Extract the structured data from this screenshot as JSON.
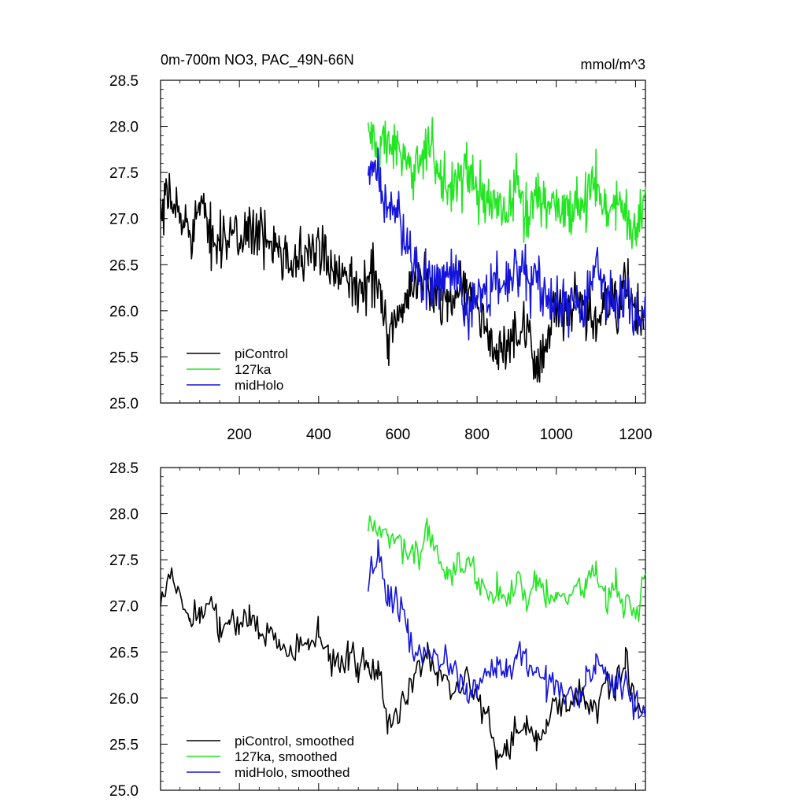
{
  "figure": {
    "title_left": "0m-700m NO3, PAC_49N-66N",
    "title_right": "mmol/m^3"
  },
  "colors": {
    "piControl": "#000000",
    "127ka": "#22e622",
    "midHolo": "#1414dc"
  },
  "chart_data": [
    {
      "type": "line",
      "title": "0m-700m NO3, PAC_49N-66N",
      "units": "mmol/m^3",
      "xlabel": "",
      "ylabel": "",
      "xlim": [
        1,
        1225
      ],
      "ylim": [
        25.0,
        28.5
      ],
      "xticks": [
        200,
        400,
        600,
        800,
        1000,
        1200
      ],
      "yticks": [
        25.0,
        25.5,
        26.0,
        26.5,
        27.0,
        27.5,
        28.0,
        28.5
      ],
      "ytick_labels": [
        "25.0",
        "25.5",
        "26.0",
        "26.5",
        "27.0",
        "27.5",
        "28.0",
        "28.5"
      ],
      "grid": false,
      "legend_position": "bottom-left",
      "series": [
        {
          "name": "piControl",
          "color_key": "piControl",
          "x": [
            1,
            25,
            50,
            75,
            100,
            125,
            150,
            175,
            200,
            225,
            250,
            275,
            300,
            325,
            350,
            375,
            400,
            425,
            450,
            475,
            500,
            525,
            550,
            575,
            600,
            625,
            650,
            675,
            700,
            725,
            750,
            775,
            800,
            825,
            850,
            875,
            900,
            925,
            950,
            975,
            1000,
            1025,
            1050,
            1075,
            1100,
            1125,
            1150,
            1175,
            1200,
            1220
          ],
          "y": [
            26.95,
            27.25,
            27.0,
            26.9,
            27.1,
            26.85,
            26.8,
            26.8,
            26.75,
            26.95,
            26.8,
            26.7,
            26.8,
            26.55,
            26.55,
            26.6,
            26.7,
            26.45,
            26.45,
            26.5,
            26.1,
            26.4,
            26.35,
            25.7,
            25.95,
            26.05,
            26.4,
            26.3,
            26.2,
            26.1,
            26.2,
            26.3,
            26.0,
            25.8,
            25.5,
            25.6,
            25.75,
            25.7,
            25.4,
            25.7,
            26.0,
            25.95,
            26.05,
            25.95,
            25.85,
            26.1,
            26.0,
            26.3,
            26.0,
            25.8
          ]
        },
        {
          "name": "127ka",
          "color_key": "127ka",
          "x": [
            525,
            550,
            575,
            600,
            625,
            650,
            675,
            700,
            725,
            750,
            775,
            800,
            825,
            850,
            875,
            900,
            925,
            950,
            975,
            1000,
            1025,
            1050,
            1075,
            1100,
            1125,
            1150,
            1175,
            1200,
            1225
          ],
          "y": [
            28.0,
            27.7,
            27.85,
            27.75,
            27.45,
            27.6,
            27.9,
            27.5,
            27.35,
            27.45,
            27.5,
            27.3,
            27.15,
            27.2,
            27.0,
            27.4,
            27.0,
            27.3,
            27.15,
            27.2,
            27.05,
            27.15,
            27.25,
            27.4,
            27.0,
            27.2,
            27.05,
            26.85,
            27.35
          ]
        },
        {
          "name": "midHolo",
          "color_key": "midHolo",
          "x": [
            525,
            550,
            575,
            600,
            625,
            650,
            675,
            700,
            725,
            750,
            775,
            800,
            825,
            850,
            875,
            900,
            925,
            950,
            975,
            1000,
            1025,
            1050,
            1075,
            1100,
            1125,
            1150,
            1175,
            1200,
            1225
          ],
          "y": [
            27.35,
            27.55,
            27.05,
            27.05,
            26.7,
            26.45,
            26.35,
            26.3,
            26.4,
            26.3,
            26.0,
            26.15,
            26.2,
            26.35,
            26.3,
            26.4,
            26.35,
            26.35,
            26.1,
            26.1,
            26.05,
            26.0,
            26.1,
            26.45,
            26.2,
            26.1,
            26.2,
            25.9,
            25.8
          ]
        }
      ]
    },
    {
      "type": "line",
      "title": "",
      "xlabel": "",
      "ylabel": "",
      "xlim": [
        1,
        1225
      ],
      "ylim": [
        25.0,
        28.5
      ],
      "xticks": [
        200,
        400,
        600,
        800,
        1000,
        1200
      ],
      "yticks": [
        25.0,
        25.5,
        26.0,
        26.5,
        27.0,
        27.5,
        28.0,
        28.5
      ],
      "ytick_labels": [
        "25.0",
        "25.5",
        "26.0",
        "26.5",
        "27.0",
        "27.5",
        "28.0",
        "28.5"
      ],
      "grid": false,
      "legend_position": "bottom-left",
      "series": [
        {
          "name": "piControl, smoothed",
          "color_key": "piControl",
          "x": [
            1,
            25,
            50,
            75,
            100,
            125,
            150,
            175,
            200,
            225,
            250,
            275,
            300,
            325,
            350,
            375,
            400,
            425,
            450,
            475,
            500,
            525,
            550,
            575,
            600,
            625,
            650,
            675,
            700,
            725,
            750,
            775,
            800,
            825,
            850,
            875,
            900,
            925,
            950,
            975,
            1000,
            1025,
            1050,
            1075,
            1100,
            1125,
            1150,
            1175,
            1200,
            1220
          ],
          "y": [
            27.05,
            27.3,
            27.1,
            26.85,
            26.95,
            27.05,
            26.8,
            26.85,
            26.75,
            26.9,
            26.75,
            26.7,
            26.6,
            26.5,
            26.55,
            26.55,
            26.65,
            26.45,
            26.4,
            26.45,
            26.35,
            26.4,
            26.3,
            25.75,
            25.85,
            26.0,
            26.4,
            26.45,
            26.3,
            26.1,
            26.15,
            26.35,
            26.0,
            25.8,
            25.35,
            25.45,
            25.65,
            25.7,
            25.45,
            25.7,
            26.0,
            25.9,
            26.05,
            26.0,
            25.9,
            26.15,
            26.05,
            26.45,
            26.05,
            25.85
          ]
        },
        {
          "name": "127ka, smoothed",
          "color_key": "127ka",
          "x": [
            525,
            550,
            575,
            600,
            625,
            650,
            675,
            700,
            725,
            750,
            775,
            800,
            825,
            850,
            875,
            900,
            925,
            950,
            975,
            1000,
            1025,
            1050,
            1075,
            1100,
            1125,
            1150,
            1175,
            1200,
            1225
          ],
          "y": [
            28.0,
            27.75,
            27.8,
            27.75,
            27.5,
            27.55,
            27.85,
            27.55,
            27.35,
            27.45,
            27.55,
            27.25,
            27.15,
            27.2,
            27.0,
            27.35,
            27.05,
            27.3,
            27.15,
            27.2,
            27.1,
            27.15,
            27.25,
            27.35,
            27.05,
            27.2,
            27.05,
            26.9,
            27.35
          ]
        },
        {
          "name": "midHolo, smoothed",
          "color_key": "midHolo",
          "x": [
            525,
            550,
            575,
            600,
            625,
            650,
            675,
            700,
            725,
            750,
            775,
            800,
            825,
            850,
            875,
            900,
            925,
            950,
            975,
            1000,
            1025,
            1050,
            1075,
            1100,
            1125,
            1150,
            1175,
            1200,
            1225
          ],
          "y": [
            27.3,
            27.55,
            27.1,
            27.05,
            26.7,
            26.45,
            26.5,
            26.4,
            26.35,
            26.3,
            26.0,
            26.2,
            26.25,
            26.35,
            26.35,
            26.45,
            26.4,
            26.3,
            26.1,
            26.15,
            26.1,
            26.05,
            26.15,
            26.45,
            26.25,
            26.15,
            26.2,
            25.95,
            25.8
          ]
        }
      ]
    }
  ]
}
